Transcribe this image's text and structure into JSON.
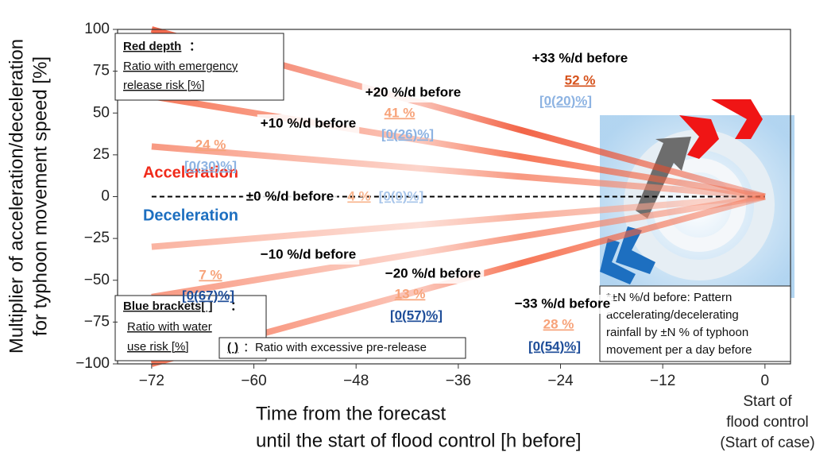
{
  "chart_data": {
    "type": "line",
    "xlim": [
      -76,
      3
    ],
    "ylim": [
      -100,
      100
    ],
    "xticks": [
      {
        "value": -72,
        "label": "−72"
      },
      {
        "value": -60,
        "label": "−60"
      },
      {
        "value": -48,
        "label": "−48"
      },
      {
        "value": -36,
        "label": "−36"
      },
      {
        "value": -24,
        "label": "−24"
      },
      {
        "value": -12,
        "label": "−12"
      },
      0
    ],
    "yticks": [
      100,
      75,
      50,
      25,
      0,
      {
        "value": -25,
        "label": "−25"
      },
      {
        "value": -50,
        "label": "−50"
      },
      {
        "value": -75,
        "label": "−75"
      },
      {
        "value": -100,
        "label": "−100"
      }
    ],
    "x_label": [
      "Time from the forecast",
      "until the start of flood control [h before]"
    ],
    "x_end_label": [
      "Start of",
      "flood control",
      "(Start of case)"
    ],
    "y_label": [
      "Multiplier of acceleration/deceleration",
      "for typhoon movement speed  [%]"
    ],
    "x": [
      -72,
      0
    ],
    "series": [
      {
        "name": "+33 %/d before",
        "color": "#f04a28",
        "values": [
          100,
          0
        ]
      },
      {
        "name": "+20 %/d before",
        "color": "#f5603c",
        "values": [
          60,
          0
        ]
      },
      {
        "name": "+10 %/d before",
        "color": "#f7866a",
        "values": [
          30,
          0
        ]
      },
      {
        "name": "±0 %/d before",
        "color": "#000000",
        "style": "dashed",
        "values": [
          0,
          0
        ]
      },
      {
        "name": "−10 %/d before",
        "color": "#f9a58f",
        "values": [
          -30,
          0
        ]
      },
      {
        "name": "−20 %/d before",
        "color": "#f7866a",
        "values": [
          -60,
          0
        ]
      },
      {
        "name": "−33 %/d before",
        "color": "#f5603c",
        "values": [
          -100,
          0
        ]
      }
    ],
    "annotations": [
      {
        "red": "52 %",
        "red_color": "#d6521c",
        "blue": "[0(20)%]",
        "blue_color": "#8db3e2"
      },
      {
        "red": "41 %",
        "red_color": "#f7a37a",
        "blue": "[0(26)%]",
        "blue_color": "#8db3e2"
      },
      {
        "red": "24 %",
        "red_color": "#f7a37a",
        "blue": "[0(30)%]",
        "blue_color": "#8db3e2"
      },
      {
        "red": "4 %",
        "red_color": "#f9b58e",
        "blue": "[0(0)%]",
        "blue_color": "#a9c6ea"
      },
      {
        "red": "7 %",
        "red_color": "#f7a37a",
        "blue": "[0(67)%]",
        "blue_color": "#1f4e99"
      },
      {
        "red": "13 %",
        "red_color": "#f7a37a",
        "blue": "[0(57)%]",
        "blue_color": "#1f4e99"
      },
      {
        "red": "28 %",
        "red_color": "#f7a37a",
        "blue": "[0(54)%]",
        "blue_color": "#1f4e99"
      }
    ],
    "acceleration": "Acceleration",
    "deceleration": "Deceleration",
    "red_legend": {
      "title": "Red depth",
      "sep": "：",
      "lines": [
        "Ratio with emergency",
        "release risk [%]"
      ]
    },
    "blue_legend": {
      "title": "Blue brackets[ ]",
      "sep": "：",
      "lines": [
        "Ratio with water",
        "use risk [%]"
      ]
    },
    "paren_legend": {
      "symbol": "( )",
      "text": "：Ratio with excessive pre-release"
    },
    "footnote": [
      "*±N %/d before: Pattern",
      "accelerating/decelerating",
      "rainfall by ±N % of typhoon",
      "movement per a day before"
    ]
  }
}
